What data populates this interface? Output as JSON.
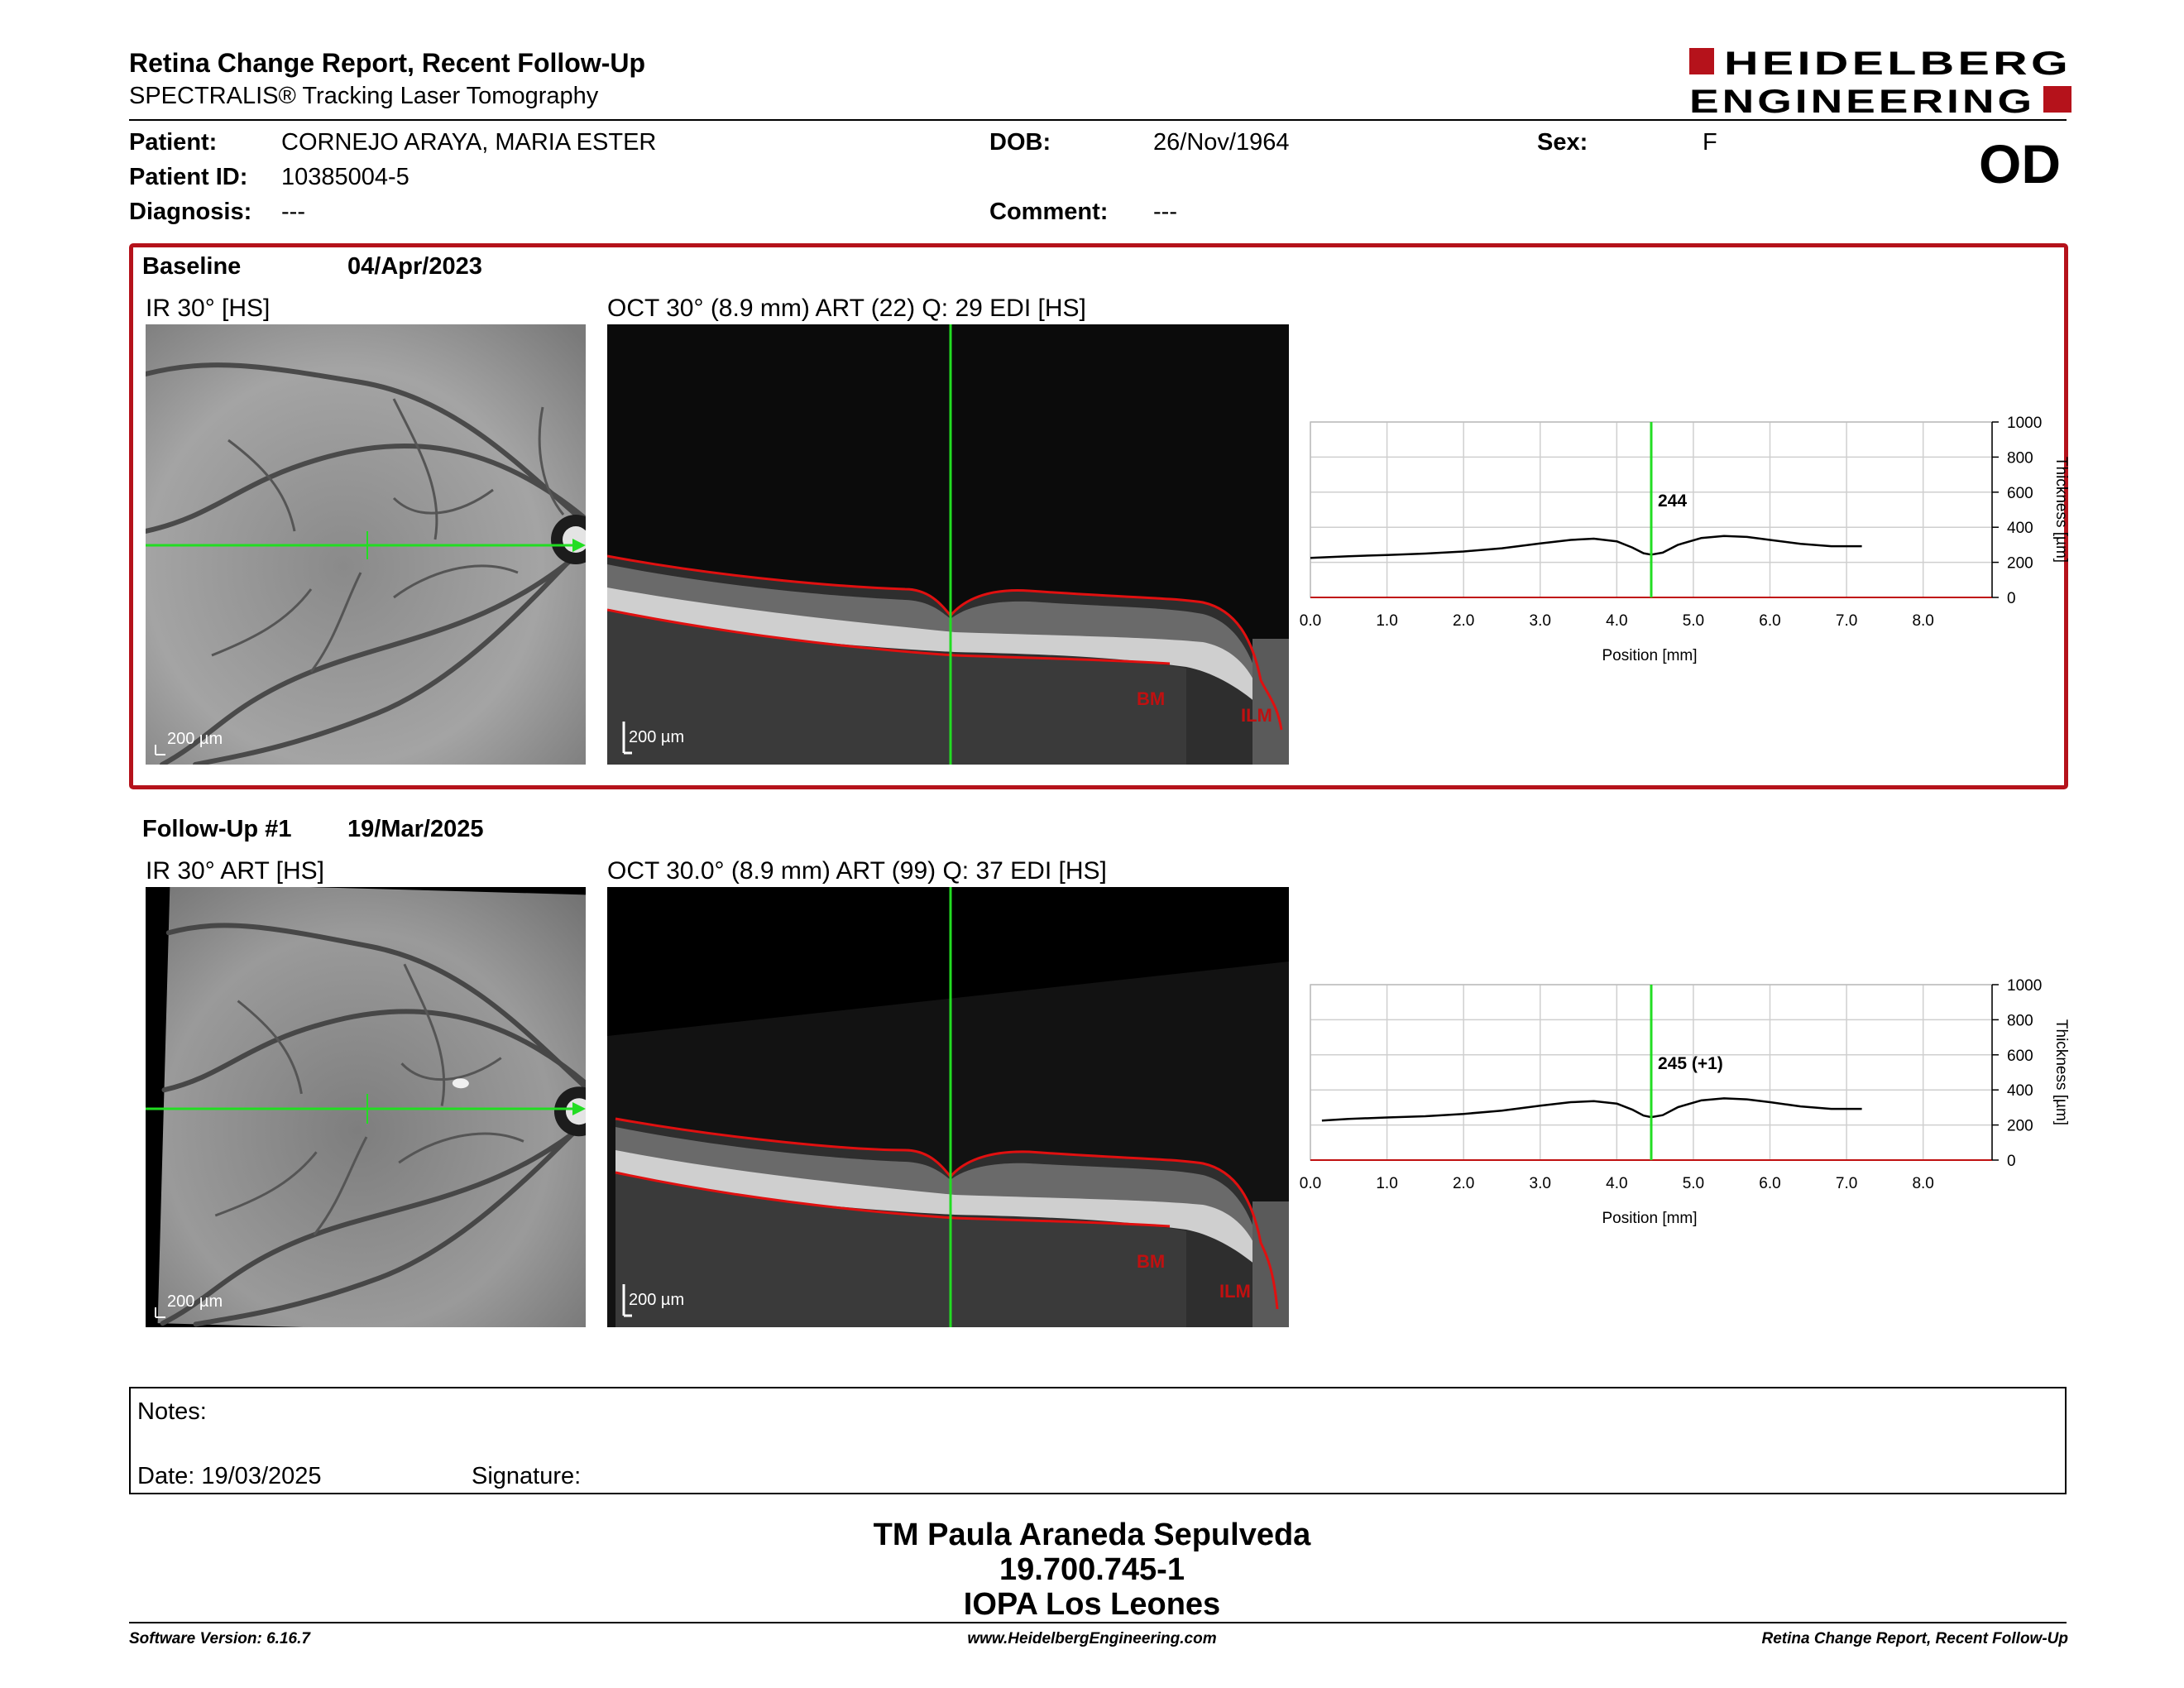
{
  "header": {
    "title": "Retina Change Report, Recent Follow-Up",
    "subtitle": "SPECTRALIS® Tracking Laser Tomography",
    "logo_text": "HEIDELBERG ENGINEERING",
    "eye": "OD"
  },
  "patient": {
    "name_label": "Patient:",
    "name": "CORNEJO ARAYA, MARIA ESTER",
    "id_label": "Patient ID:",
    "id": "10385004-5",
    "diagnosis_label": "Diagnosis:",
    "diagnosis": "---",
    "dob_label": "DOB:",
    "dob": "26/Nov/1964",
    "comment_label": "Comment:",
    "comment": "---",
    "sex_label": "Sex:",
    "sex": "F"
  },
  "colors": {
    "accent": "#b5121b",
    "scan_line": "#22dd22",
    "layer_line": "#e01010",
    "curve": "#000000"
  },
  "exams": [
    {
      "label": "Baseline",
      "date": "04/Apr/2023",
      "ir_label": "IR 30° [HS]",
      "oct_label": "OCT 30° (8.9 mm) ART (22) Q: 29 EDI [HS]",
      "ir_scale": "200 µm",
      "oct_scale": "200 µm",
      "bm_label": "BM",
      "ilm_label": "ILM"
    },
    {
      "label": "Follow-Up #1",
      "date": "19/Mar/2025",
      "ir_label": "IR 30° ART [HS]",
      "oct_label": "OCT 30.0° (8.9 mm) ART (99) Q: 37 EDI [HS]",
      "ir_scale": "200 µm",
      "oct_scale": "200 µm",
      "bm_label": "BM",
      "ilm_label": "ILM"
    }
  ],
  "chart_data": [
    {
      "type": "line",
      "xlabel": "Position [mm]",
      "ylabel": "Thickness [µm]",
      "xlim": [
        0,
        8.9
      ],
      "ylim": [
        0,
        1000
      ],
      "x_ticks": [
        "0.0",
        "1.0",
        "2.0",
        "3.0",
        "4.0",
        "5.0",
        "6.0",
        "7.0",
        "8.0"
      ],
      "y_ticks": [
        "0",
        "200",
        "400",
        "600",
        "800",
        "1000"
      ],
      "grid": true,
      "marker_x": 4.45,
      "marker_label": "244",
      "series": [
        {
          "x": [
            0,
            0.5,
            1.0,
            1.5,
            2.0,
            2.5,
            3.0,
            3.4,
            3.7,
            4.0,
            4.2,
            4.35,
            4.45,
            4.6,
            4.8,
            5.1,
            5.4,
            5.7,
            6.0,
            6.4,
            6.8,
            7.2
          ],
          "values": [
            225,
            235,
            242,
            250,
            262,
            280,
            308,
            328,
            335,
            320,
            285,
            252,
            244,
            255,
            300,
            338,
            350,
            345,
            328,
            305,
            292,
            292
          ]
        }
      ]
    },
    {
      "type": "line",
      "xlabel": "Position [mm]",
      "ylabel": "Thickness [µm]",
      "xlim": [
        0,
        8.9
      ],
      "ylim": [
        0,
        1000
      ],
      "x_ticks": [
        "0.0",
        "1.0",
        "2.0",
        "3.0",
        "4.0",
        "5.0",
        "6.0",
        "7.0",
        "8.0"
      ],
      "y_ticks": [
        "0",
        "200",
        "400",
        "600",
        "800",
        "1000"
      ],
      "grid": true,
      "marker_x": 4.45,
      "marker_label": "245 (+1)",
      "series": [
        {
          "x": [
            0.15,
            0.5,
            1.0,
            1.5,
            2.0,
            2.5,
            3.0,
            3.4,
            3.7,
            4.0,
            4.2,
            4.35,
            4.45,
            4.6,
            4.8,
            5.1,
            5.4,
            5.7,
            6.0,
            6.4,
            6.8,
            7.2
          ],
          "values": [
            225,
            235,
            243,
            250,
            263,
            282,
            310,
            330,
            336,
            322,
            288,
            254,
            245,
            256,
            302,
            340,
            352,
            346,
            330,
            306,
            292,
            292
          ]
        }
      ]
    }
  ],
  "notes": {
    "notes_label": "Notes:",
    "date_label": "Date: 19/03/2025",
    "signature_label": "Signature:"
  },
  "signer": {
    "name": "TM Paula Araneda Sepulveda",
    "id": "19.700.745-1",
    "institution": "IOPA Los Leones"
  },
  "footer": {
    "software": "Software Version: 6.16.7",
    "website": "www.HeidelbergEngineering.com",
    "report": "Retina Change Report, Recent Follow-Up"
  }
}
